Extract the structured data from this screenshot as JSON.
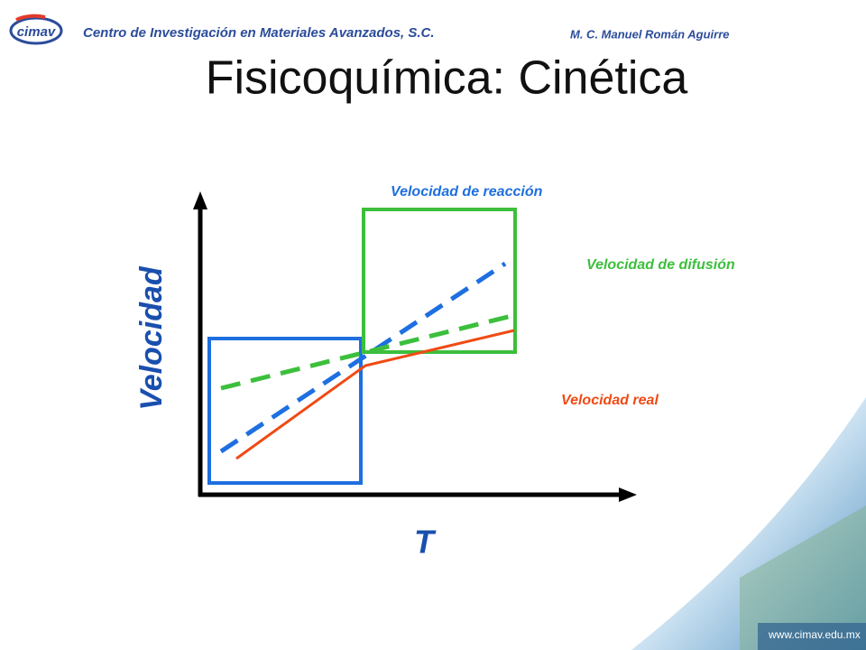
{
  "header": {
    "logo": "cimav",
    "organization": "Centro de Investigación en Materiales Avanzados, S.C.",
    "author": "M. C. Manuel Román Aguirre"
  },
  "title": "Fisicoquímica: Cinética",
  "diagram": {
    "y_axis_label": "Velocidad",
    "x_axis_label": "T",
    "labels": {
      "reaction": "Velocidad de reacción",
      "diffusion": "Velocidad de difusión",
      "real": "Velocidad real"
    }
  },
  "footer": {
    "url": "www.cimav.edu.mx"
  }
}
